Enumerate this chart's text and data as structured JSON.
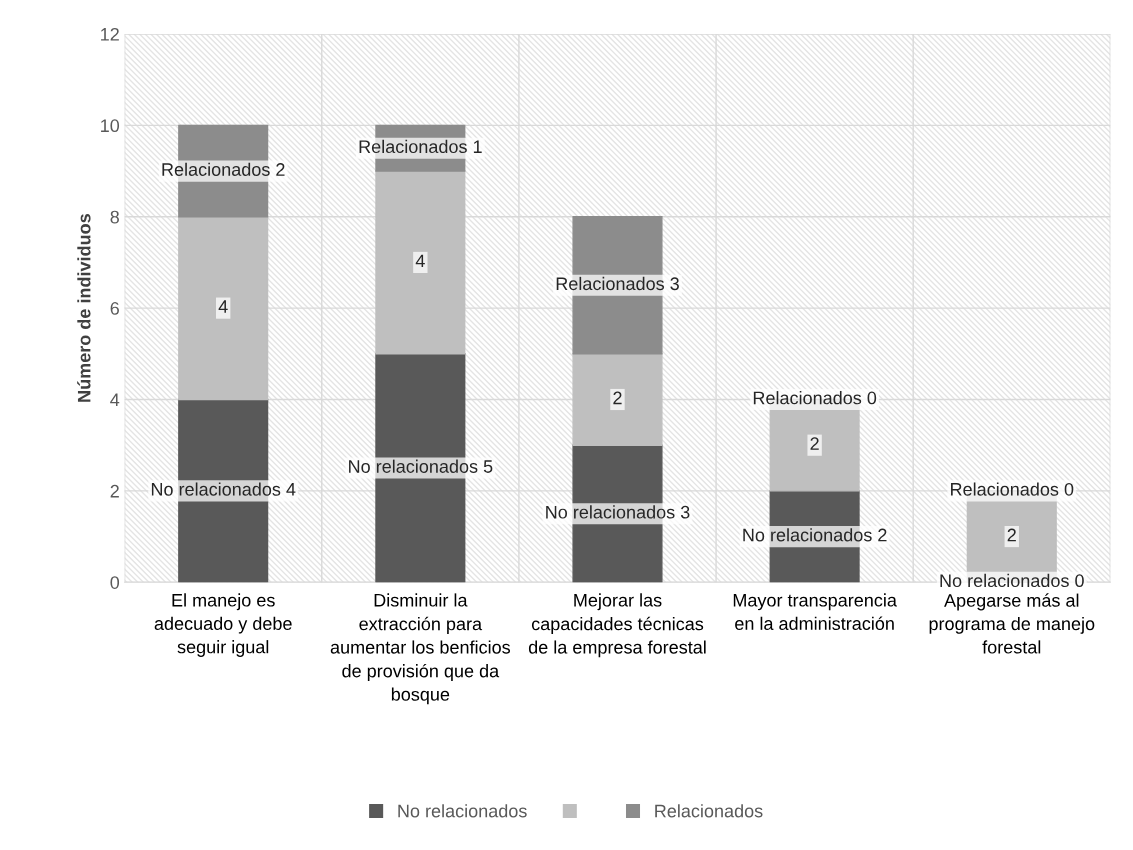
{
  "chart_data": {
    "type": "bar",
    "stacked": true,
    "ylabel": "Número de individuos",
    "categories": [
      "El manejo es adecuado y debe seguir igual",
      "Disminuir la extracción para aumentar los benficios de provisión que da bosque",
      "Mejorar las capacidades técnicas de la empresa forestal",
      "Mayor transparencia en la administración",
      "Apegarse más al programa de manejo forestal"
    ],
    "series": [
      {
        "name": "No relacionados",
        "color": "#595959",
        "values": [
          4,
          5,
          3,
          2,
          0
        ],
        "value_labels": [
          "No relacionados 4",
          "No relacionados 5",
          "No relacionados 3",
          "No relacionados 2",
          "No relacionados 0"
        ]
      },
      {
        "color": "#bfbfbf",
        "values": [
          4,
          4,
          2,
          2,
          2
        ],
        "value_labels": [
          "4",
          "4",
          "2",
          "2",
          "2"
        ]
      },
      {
        "name": "Relacionados",
        "color": "#8c8c8c",
        "values": [
          2,
          1,
          3,
          0,
          0
        ],
        "value_labels": [
          "Relacionados 2",
          "Relacionados 1",
          "Relacionados 3",
          "Relacionados 0",
          "Relacionados 0"
        ]
      }
    ],
    "ylim": [
      0,
      12
    ],
    "yticks": [
      0,
      2,
      4,
      6,
      8,
      10,
      12
    ],
    "grid": true,
    "legend": "bottom"
  }
}
